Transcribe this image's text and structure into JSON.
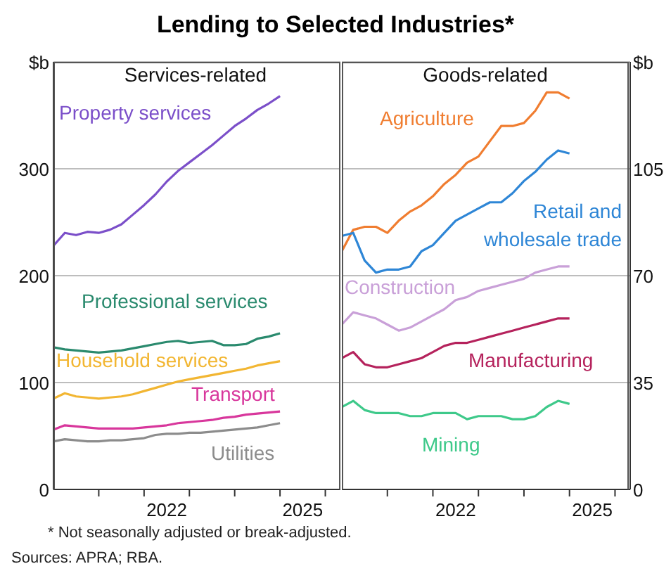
{
  "chart_data": [
    {
      "type": "line",
      "title": "Lending to Selected Industries*",
      "subtitle": "Services-related",
      "annotations": [
        "* Not seasonally adjusted or break-adjusted.",
        "Sources: APRA; RBA."
      ],
      "x": [
        "2020-01",
        "2020-04",
        "2020-07",
        "2020-10",
        "2021-01",
        "2021-04",
        "2021-07",
        "2021-10",
        "2022-01",
        "2022-04",
        "2022-07",
        "2022-10",
        "2023-01",
        "2023-04",
        "2023-07",
        "2023-10",
        "2024-01",
        "2024-04",
        "2024-07",
        "2024-10",
        "2025-01"
      ],
      "xlim": [
        "2020-01",
        "2026-05"
      ],
      "xticks": [
        {
          "value": "2021-01",
          "label": null
        },
        {
          "value": "2022-01",
          "label": null
        },
        {
          "value": "2022-07",
          "label": "2022"
        },
        {
          "value": "2023-01",
          "label": null
        },
        {
          "value": "2024-01",
          "label": null
        },
        {
          "value": "2025-01",
          "label": null
        },
        {
          "value": "2025-07",
          "label": "2025"
        },
        {
          "value": "2026-01",
          "label": null
        }
      ],
      "ylim": [
        0,
        400
      ],
      "yticks": [
        0,
        100,
        200,
        300,
        {
          "value": 400,
          "label": "$b"
        }
      ],
      "grid": "y",
      "legend": false,
      "tick_labels": "xy",
      "line_style": "solid",
      "marker": "none",
      "series": [
        {
          "name": "Property services",
          "color": "#7b4fc9",
          "values": [
            228,
            240,
            238,
            241,
            240,
            243,
            248,
            257,
            266,
            276,
            288,
            298,
            306,
            314,
            322,
            331,
            340,
            347,
            355,
            361,
            368
          ]
        },
        {
          "name": "Professional services",
          "color": "#2a8a6e",
          "values": [
            133,
            131,
            130,
            129,
            128,
            129,
            130,
            132,
            134,
            136,
            138,
            139,
            137,
            138,
            139,
            135,
            135,
            136,
            141,
            143,
            146
          ]
        },
        {
          "name": "Household services",
          "color": "#f2b632",
          "values": [
            85,
            90,
            87,
            86,
            85,
            86,
            87,
            89,
            92,
            95,
            98,
            101,
            103,
            105,
            107,
            109,
            111,
            113,
            116,
            118,
            120
          ]
        },
        {
          "name": "Transport",
          "color": "#d8379c",
          "values": [
            56,
            60,
            59,
            58,
            57,
            57,
            57,
            57,
            58,
            59,
            60,
            62,
            63,
            64,
            65,
            67,
            68,
            70,
            71,
            72,
            73
          ]
        },
        {
          "name": "Utilities",
          "color": "#8c8c8c",
          "values": [
            45,
            47,
            46,
            45,
            45,
            46,
            46,
            47,
            48,
            51,
            52,
            52,
            53,
            53,
            54,
            55,
            56,
            57,
            58,
            60,
            62
          ]
        }
      ]
    },
    {
      "type": "line",
      "subtitle": "Goods-related",
      "x": [
        "2020-01",
        "2020-04",
        "2020-07",
        "2020-10",
        "2021-01",
        "2021-04",
        "2021-07",
        "2021-10",
        "2022-01",
        "2022-04",
        "2022-07",
        "2022-10",
        "2023-01",
        "2023-04",
        "2023-07",
        "2023-10",
        "2024-01",
        "2024-04",
        "2024-07",
        "2024-10",
        "2025-01"
      ],
      "xlim": [
        "2020-01",
        "2026-05"
      ],
      "xticks": [
        {
          "value": "2021-01",
          "label": null
        },
        {
          "value": "2022-01",
          "label": null
        },
        {
          "value": "2022-07",
          "label": "2022"
        },
        {
          "value": "2023-01",
          "label": null
        },
        {
          "value": "2024-01",
          "label": null
        },
        {
          "value": "2025-01",
          "label": null
        },
        {
          "value": "2025-07",
          "label": "2025"
        },
        {
          "value": "2026-01",
          "label": null
        }
      ],
      "ylim": [
        0,
        140
      ],
      "yticks": [
        0,
        35,
        70,
        105,
        {
          "value": 140,
          "label": "$b"
        }
      ],
      "grid": "y",
      "legend": false,
      "tick_labels": "xy",
      "line_style": "solid",
      "marker": "none",
      "series": [
        {
          "name": "Agriculture",
          "color": "#f07d30",
          "values": [
            78,
            85,
            86,
            86,
            84,
            88,
            91,
            93,
            96,
            100,
            103,
            107,
            109,
            114,
            119,
            119,
            120,
            124,
            130,
            130,
            128
          ]
        },
        {
          "name": "Retail and wholesale trade",
          "color": "#2e86d6",
          "values": [
            83,
            84,
            75,
            71,
            72,
            72,
            73,
            78,
            80,
            84,
            88,
            90,
            92,
            94,
            94,
            97,
            101,
            104,
            108,
            111,
            110
          ]
        },
        {
          "name": "Construction",
          "color": "#c9a0d8",
          "values": [
            54,
            58,
            57,
            56,
            54,
            52,
            53,
            55,
            57,
            59,
            62,
            63,
            65,
            66,
            67,
            68,
            69,
            71,
            72,
            73,
            73
          ]
        },
        {
          "name": "Manufacturing",
          "color": "#b5225c",
          "values": [
            43,
            45,
            41,
            40,
            40,
            41,
            42,
            43,
            45,
            47,
            48,
            48,
            49,
            50,
            51,
            52,
            53,
            54,
            55,
            56,
            56
          ]
        },
        {
          "name": "Mining",
          "color": "#3ec98a",
          "values": [
            27,
            29,
            26,
            25,
            25,
            25,
            24,
            24,
            25,
            25,
            25,
            23,
            24,
            24,
            24,
            23,
            23,
            24,
            27,
            29,
            28
          ]
        }
      ]
    }
  ]
}
